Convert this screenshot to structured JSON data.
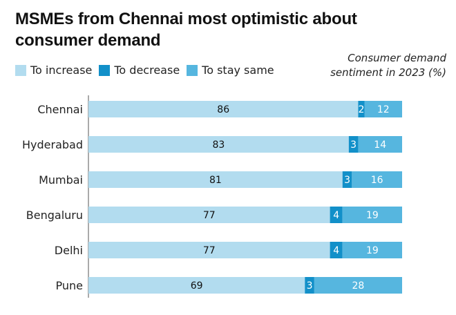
{
  "chart_data": {
    "type": "bar",
    "orientation": "horizontal",
    "stacked": true,
    "title": "MSMEs from Chennai most optimistic about consumer demand",
    "note": "Consumer demand sentiment in 2023 (%)",
    "categories": [
      "Chennai",
      "Hyderabad",
      "Mumbai",
      "Bengaluru",
      "Delhi",
      "Pune"
    ],
    "series": [
      {
        "name": "To increase",
        "color": "#b2dcef",
        "values": [
          86,
          83,
          81,
          77,
          77,
          69
        ]
      },
      {
        "name": "To decrease",
        "color": "#1290c9",
        "values": [
          2,
          3,
          3,
          4,
          4,
          3
        ]
      },
      {
        "name": "To stay same",
        "color": "#56b6df",
        "values": [
          12,
          14,
          16,
          19,
          19,
          28
        ]
      }
    ],
    "xlim": [
      0,
      100
    ],
    "grid": false,
    "legend_position": "top-left"
  }
}
